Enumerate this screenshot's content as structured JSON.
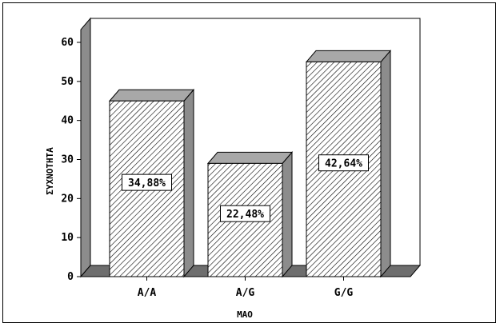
{
  "chart_data": {
    "type": "bar",
    "xlabel": "MAO",
    "ylabel": "ΣΥΧΝΟΤΗΤΑ",
    "categories": [
      "A/A",
      "A/G",
      "G/G"
    ],
    "values": [
      45,
      29,
      55
    ],
    "data_labels": [
      "34,88%",
      "22,48%",
      "42,64%"
    ],
    "ylim": [
      0,
      60
    ],
    "yticks": [
      "0",
      "10",
      "20",
      "30",
      "40",
      "50",
      "60"
    ],
    "grid": false,
    "legend": "none",
    "style": "3d-hatched",
    "colors": {
      "bar_fill": "#ffffff",
      "hatch": "#000000",
      "side": "#8c8c8c",
      "top": "#a8a8a8",
      "floor": "#6e6e6e",
      "wall": "#ffffff"
    }
  }
}
